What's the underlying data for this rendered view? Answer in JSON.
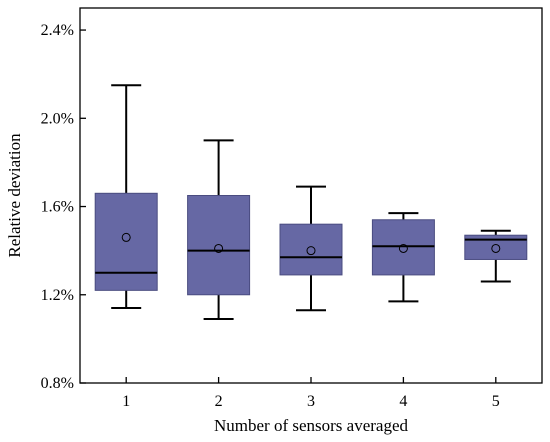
{
  "chart_data": {
    "type": "boxplot",
    "xlabel": "Number of sensors averaged",
    "ylabel": "Relative deviation",
    "categories": [
      "1",
      "2",
      "3",
      "4",
      "5"
    ],
    "ylim": [
      0.8,
      2.5
    ],
    "yticks": [
      {
        "value": 0.8,
        "label": "0.8%"
      },
      {
        "value": 1.2,
        "label": "1.2%"
      },
      {
        "value": 1.6,
        "label": "1.6%"
      },
      {
        "value": 2.0,
        "label": "2.0%"
      },
      {
        "value": 2.4,
        "label": "2.4%"
      }
    ],
    "box_color": "#6668A4",
    "boxes": [
      {
        "category": "1",
        "whisker_low": 1.14,
        "q1": 1.22,
        "median": 1.3,
        "q3": 1.66,
        "whisker_high": 2.15,
        "mean": 1.46
      },
      {
        "category": "2",
        "whisker_low": 1.09,
        "q1": 1.2,
        "median": 1.4,
        "q3": 1.65,
        "whisker_high": 1.9,
        "mean": 1.41
      },
      {
        "category": "3",
        "whisker_low": 1.13,
        "q1": 1.29,
        "median": 1.37,
        "q3": 1.52,
        "whisker_high": 1.69,
        "mean": 1.4
      },
      {
        "category": "4",
        "whisker_low": 1.17,
        "q1": 1.29,
        "median": 1.42,
        "q3": 1.54,
        "whisker_high": 1.57,
        "mean": 1.41
      },
      {
        "category": "5",
        "whisker_low": 1.26,
        "q1": 1.36,
        "median": 1.45,
        "q3": 1.47,
        "whisker_high": 1.49,
        "mean": 1.41
      }
    ],
    "grid": false
  }
}
